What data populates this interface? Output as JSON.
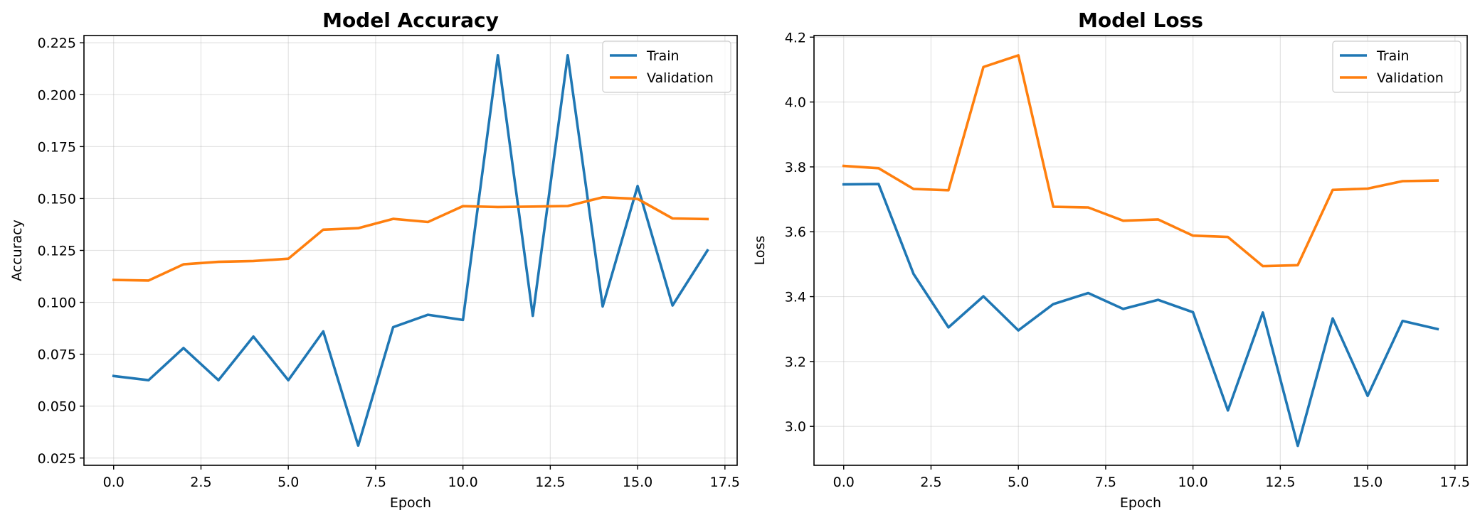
{
  "chart_data": [
    {
      "type": "line",
      "title": "Model Accuracy",
      "xlabel": "Epoch",
      "ylabel": "Accuracy",
      "xlim": [
        -0.85,
        17.85
      ],
      "ylim": [
        0.0215,
        0.2285
      ],
      "xticks": [
        0,
        2.5,
        5,
        7.5,
        10,
        12.5,
        15,
        17.5
      ],
      "xtick_labels": [
        "0.0",
        "2.5",
        "5.0",
        "7.5",
        "10.0",
        "12.5",
        "15.0",
        "17.5"
      ],
      "yticks": [
        0.025,
        0.05,
        0.075,
        0.1,
        0.125,
        0.15,
        0.175,
        0.2,
        0.225
      ],
      "ytick_labels": [
        "0.025",
        "0.050",
        "0.075",
        "0.100",
        "0.125",
        "0.150",
        "0.175",
        "0.200",
        "0.225"
      ],
      "grid": true,
      "legend_position": "top-right",
      "x": [
        0,
        1,
        2,
        3,
        4,
        5,
        6,
        7,
        8,
        9,
        10,
        11,
        12,
        13,
        14,
        15,
        16,
        17
      ],
      "series": [
        {
          "name": "Train",
          "color": "#1f77b4",
          "values": [
            0.0645,
            0.0625,
            0.078,
            0.0625,
            0.0835,
            0.0625,
            0.086,
            0.031,
            0.088,
            0.094,
            0.0915,
            0.219,
            0.0935,
            0.219,
            0.098,
            0.156,
            0.0985,
            0.125
          ]
        },
        {
          "name": "Validation",
          "color": "#ff7f0e",
          "values": [
            0.1108,
            0.1105,
            0.1183,
            0.1195,
            0.1199,
            0.121,
            0.135,
            0.1357,
            0.1402,
            0.1387,
            0.1463,
            0.1459,
            0.1461,
            0.1464,
            0.1506,
            0.1498,
            0.1404,
            0.1401
          ]
        }
      ]
    },
    {
      "type": "line",
      "title": "Model Loss",
      "xlabel": "Epoch",
      "ylabel": "Loss",
      "xlim": [
        -0.85,
        17.85
      ],
      "ylim": [
        2.88,
        4.205
      ],
      "xticks": [
        0,
        2.5,
        5,
        7.5,
        10,
        12.5,
        15,
        17.5
      ],
      "xtick_labels": [
        "0.0",
        "2.5",
        "5.0",
        "7.5",
        "10.0",
        "12.5",
        "15.0",
        "17.5"
      ],
      "yticks": [
        3.0,
        3.2,
        3.4,
        3.6,
        3.8,
        4.0,
        4.2
      ],
      "ytick_labels": [
        "3.0",
        "3.2",
        "3.4",
        "3.6",
        "3.8",
        "4.0",
        "4.2"
      ],
      "grid": true,
      "legend_position": "top-right",
      "x": [
        0,
        1,
        2,
        3,
        4,
        5,
        6,
        7,
        8,
        9,
        10,
        11,
        12,
        13,
        14,
        15,
        16,
        17
      ],
      "series": [
        {
          "name": "Train",
          "color": "#1f77b4",
          "values": [
            3.746,
            3.747,
            3.47,
            3.305,
            3.401,
            3.296,
            3.377,
            3.411,
            3.362,
            3.39,
            3.352,
            3.049,
            3.351,
            2.94,
            3.333,
            3.094,
            3.325,
            3.3
          ]
        },
        {
          "name": "Validation",
          "color": "#ff7f0e",
          "values": [
            3.803,
            3.796,
            3.732,
            3.728,
            4.108,
            4.144,
            3.677,
            3.675,
            3.634,
            3.638,
            3.588,
            3.584,
            3.494,
            3.497,
            3.729,
            3.733,
            3.756,
            3.758
          ]
        }
      ]
    }
  ]
}
